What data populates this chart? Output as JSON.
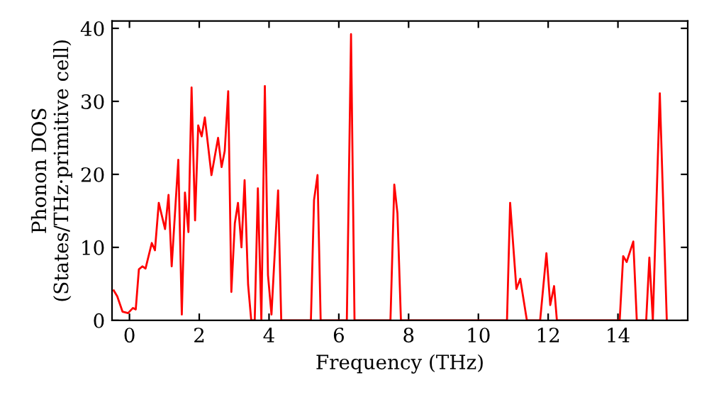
{
  "chart_data": {
    "type": "line",
    "xlabel": "Frequency (THz)",
    "ylabel": "Phonon DOS\n(States/THz·primitive cell)",
    "series": [
      {
        "color": "#ff0000",
        "x": [
          -0.45,
          -0.35,
          -0.2,
          -0.04,
          0.1,
          0.18,
          0.27,
          0.37,
          0.46,
          0.64,
          0.73,
          0.84,
          1.02,
          1.12,
          1.21,
          1.4,
          1.5,
          1.59,
          1.69,
          1.78,
          1.88,
          1.97,
          2.07,
          2.16,
          2.35,
          2.54,
          2.64,
          2.73,
          2.83,
          2.92,
          3.02,
          3.11,
          3.21,
          3.3,
          3.4,
          3.49,
          3.59,
          3.68,
          3.78,
          3.88,
          3.97,
          4.07,
          4.26,
          4.35,
          5.2,
          5.29,
          5.39,
          5.48,
          6.23,
          6.35,
          6.45,
          7.48,
          7.59,
          7.68,
          7.78,
          10.82,
          10.91,
          11.09,
          11.2,
          11.39,
          11.77,
          11.95,
          12.06,
          12.17,
          12.25,
          14.05,
          14.15,
          14.25,
          14.44,
          14.54,
          14.81,
          14.9,
          15.0,
          15.2,
          15.4
        ],
        "values": [
          4.1,
          3.3,
          1.2,
          1.0,
          1.7,
          1.5,
          7.0,
          7.4,
          7.1,
          10.6,
          9.6,
          16.1,
          12.5,
          17.2,
          7.4,
          22.0,
          0.8,
          17.5,
          12.1,
          31.9,
          13.7,
          26.7,
          25.2,
          27.8,
          19.9,
          25.0,
          21.0,
          23.2,
          31.4,
          3.9,
          13.3,
          16.1,
          10.0,
          19.2,
          4.9,
          0,
          0,
          18.1,
          0,
          32.1,
          6.2,
          0.8,
          17.8,
          0,
          0,
          16.5,
          19.9,
          0,
          0,
          39.2,
          0,
          0,
          18.6,
          14.7,
          0,
          0,
          16.1,
          4.3,
          5.7,
          0,
          0,
          9.2,
          2.1,
          4.7,
          0,
          0,
          8.8,
          8.0,
          10.8,
          0,
          0,
          8.6,
          0,
          31.1,
          0
        ]
      }
    ],
    "xlim": [
      -0.5,
      16
    ],
    "ylim": [
      0,
      41
    ],
    "xticks": [
      0,
      2,
      4,
      6,
      8,
      10,
      12,
      14
    ],
    "yticks": [
      0,
      10,
      20,
      30,
      40
    ],
    "grid": false,
    "legend": false,
    "marker": "none",
    "line_style": "solid"
  }
}
